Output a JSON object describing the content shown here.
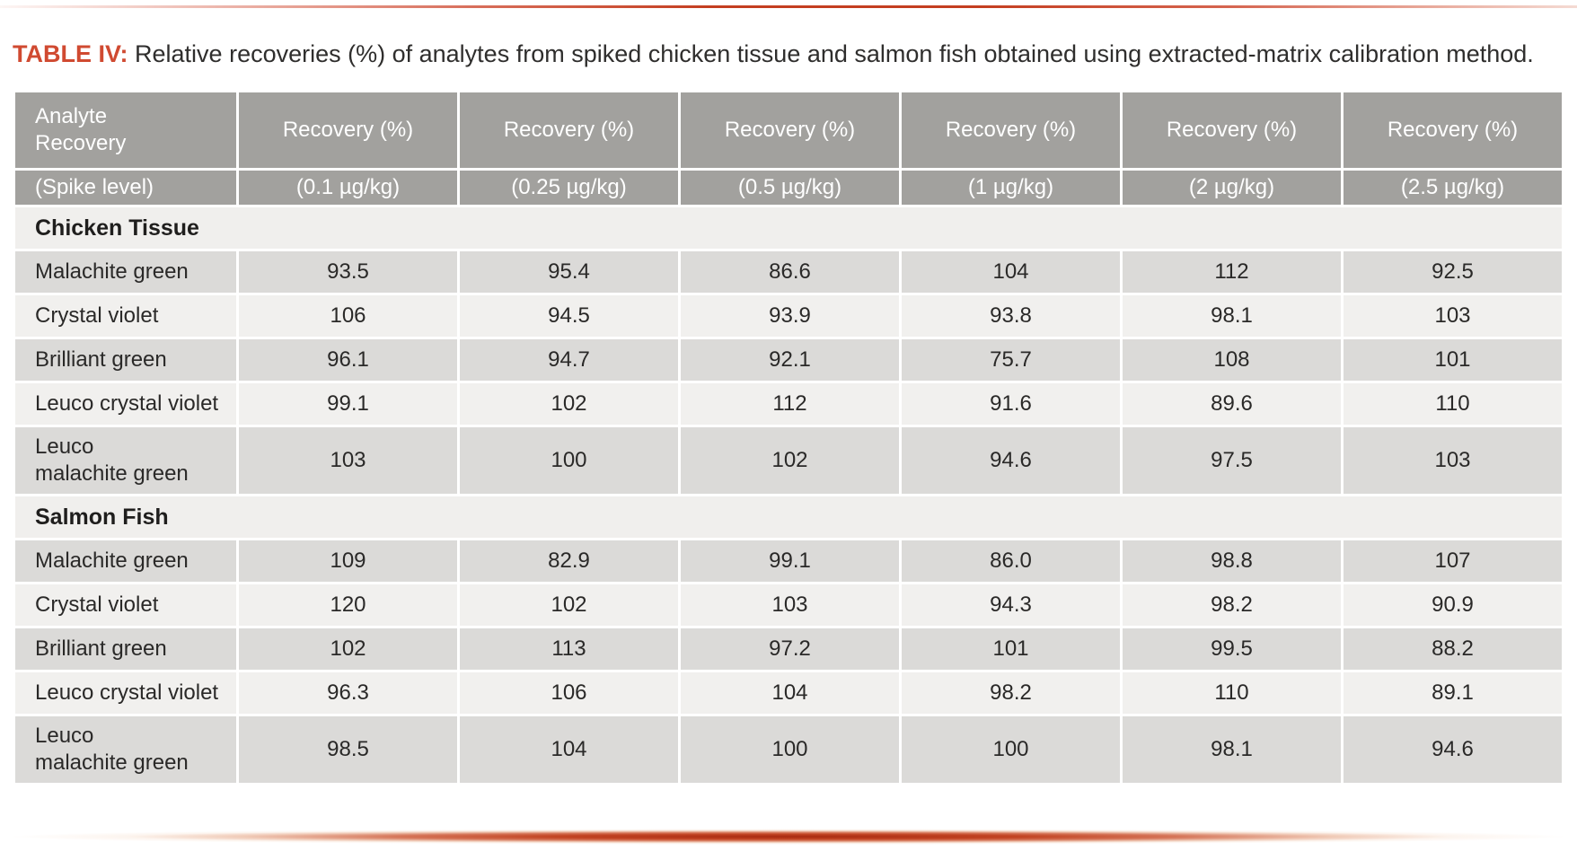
{
  "caption": {
    "label": "TABLE IV:",
    "text": "Relative recoveries (%) of analytes from spiked chicken tissue and salmon fish obtained using extracted-matrix calibration method."
  },
  "table": {
    "header_row1": [
      "Analyte\nRecovery",
      "Recovery (%)",
      "Recovery (%)",
      "Recovery (%)",
      "Recovery (%)",
      "Recovery (%)",
      "Recovery (%)"
    ],
    "header_row2": [
      "(Spike level)",
      "(0.1 µg/kg)",
      "(0.25 µg/kg)",
      "(0.5 µg/kg)",
      "(1 µg/kg)",
      "(2 µg/kg)",
      "(2.5 µg/kg)"
    ],
    "sections": [
      {
        "name": "Chicken Tissue",
        "rows": [
          {
            "analyte": "Malachite green",
            "values": [
              "93.5",
              "95.4",
              "86.6",
              "104",
              "112",
              "92.5"
            ]
          },
          {
            "analyte": "Crystal violet",
            "values": [
              "106",
              "94.5",
              "93.9",
              "93.8",
              "98.1",
              "103"
            ]
          },
          {
            "analyte": "Brilliant green",
            "values": [
              "96.1",
              "94.7",
              "92.1",
              "75.7",
              "108",
              "101"
            ]
          },
          {
            "analyte": "Leuco crystal violet",
            "values": [
              "99.1",
              "102",
              "112",
              "91.6",
              "89.6",
              "110"
            ]
          },
          {
            "analyte": "Leuco\nmalachite green",
            "values": [
              "103",
              "100",
              "102",
              "94.6",
              "97.5",
              "103"
            ]
          }
        ]
      },
      {
        "name": "Salmon Fish",
        "rows": [
          {
            "analyte": "Malachite green",
            "values": [
              "109",
              "82.9",
              "99.1",
              "86.0",
              "98.8",
              "107"
            ]
          },
          {
            "analyte": "Crystal violet",
            "values": [
              "120",
              "102",
              "103",
              "94.3",
              "98.2",
              "90.9"
            ]
          },
          {
            "analyte": "Brilliant green",
            "values": [
              "102",
              "113",
              "97.2",
              "101",
              "99.5",
              "88.2"
            ]
          },
          {
            "analyte": "Leuco crystal violet",
            "values": [
              "96.3",
              "106",
              "104",
              "98.2",
              "110",
              "89.1"
            ]
          },
          {
            "analyte": "Leuco\nmalachite green",
            "values": [
              "98.5",
              "104",
              "100",
              "100",
              "98.1",
              "94.6"
            ]
          }
        ]
      }
    ]
  },
  "colors": {
    "accent_red": "#c43e20",
    "caption_label_red": "#d04a31",
    "header_gray": "#a2a19e",
    "row_dark": "#dbdad8",
    "row_light": "#f1f0ee",
    "section_bg": "#f0efed",
    "text": "#2a2928"
  }
}
